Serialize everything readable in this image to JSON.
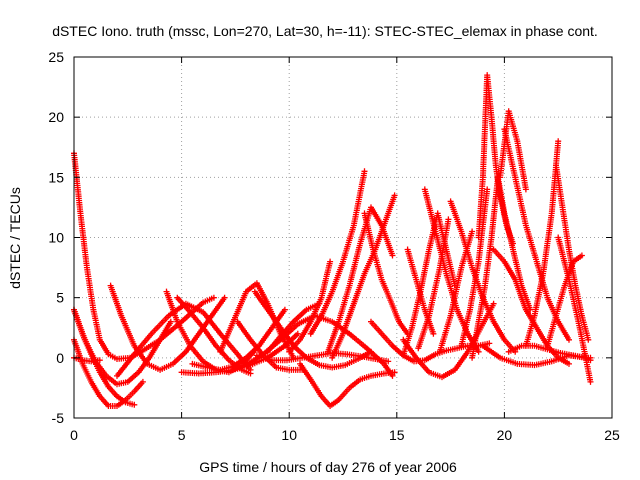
{
  "chart_data": {
    "type": "scatter",
    "title": "dSTEC Iono. truth (mssc, Lon=270, Lat=30, h=-11): STEC-STEC_elemax in phase cont.",
    "xlabel": "GPS time / hours of day 276 of year 2006",
    "ylabel": "dSTEC  / TECUs",
    "xlim": [
      0,
      25
    ],
    "ylim": [
      -5,
      25
    ],
    "x_ticks": [
      "0",
      "5",
      "10",
      "15",
      "20",
      "25"
    ],
    "y_ticks": [
      "-5",
      "0",
      "5",
      "10",
      "15",
      "20",
      "25"
    ],
    "grid": true,
    "legend": "none",
    "marker": "+",
    "color": "#ff0000",
    "series": [
      {
        "x": [
          0.0,
          0.3,
          0.6,
          0.9,
          1.2,
          1.6,
          2.0,
          2.6,
          3.2,
          4.0,
          5.0,
          6.0,
          6.5
        ],
        "y": [
          17.0,
          12.0,
          7.5,
          4.0,
          1.5,
          0.3,
          -0.1,
          0.0,
          0.6,
          1.5,
          3.0,
          4.6,
          5.0
        ]
      },
      {
        "x": [
          0.0,
          0.4,
          0.8,
          1.2,
          1.6,
          2.0,
          2.4,
          2.8
        ],
        "y": [
          4.0,
          2.0,
          0.3,
          -1.2,
          -2.4,
          -3.2,
          -3.7,
          -3.9
        ]
      },
      {
        "x": [
          0.0,
          0.4,
          0.8,
          1.2,
          1.6,
          2.0,
          2.4,
          2.8,
          3.2
        ],
        "y": [
          1.5,
          -0.5,
          -2.0,
          -3.2,
          -4.0,
          -4.0,
          -3.5,
          -2.8,
          -2.0
        ]
      },
      {
        "x": [
          0.0,
          0.5,
          1.0,
          1.5,
          2.0,
          2.5,
          3.0,
          3.5,
          4.0,
          4.5
        ],
        "y": [
          4.0,
          1.5,
          -0.3,
          -1.5,
          -2.2,
          -2.0,
          -1.2,
          0.0,
          1.5,
          3.0
        ]
      },
      {
        "x": [
          0.0,
          0.4,
          0.8,
          1.2
        ],
        "y": [
          0.0,
          -0.2,
          -0.3,
          -0.2
        ]
      },
      {
        "x": [
          1.7,
          2.2,
          2.8,
          3.4,
          4.0,
          4.6,
          5.2,
          5.8,
          6.4,
          7.0
        ],
        "y": [
          6.0,
          3.5,
          1.0,
          -0.5,
          -1.0,
          -0.5,
          0.5,
          2.0,
          3.5,
          5.0
        ]
      },
      {
        "x": [
          4.3,
          4.8,
          5.4,
          6.0,
          6.6,
          7.2,
          7.8,
          8.4
        ],
        "y": [
          5.5,
          3.0,
          1.0,
          -0.3,
          -1.0,
          -1.2,
          -0.6,
          0.6
        ]
      },
      {
        "x": [
          4.8,
          5.4,
          6.0,
          6.6,
          7.2,
          7.8,
          8.2
        ],
        "y": [
          5.0,
          3.8,
          2.5,
          1.0,
          -0.2,
          -1.0,
          -1.3
        ]
      },
      {
        "x": [
          2.0,
          2.8,
          3.6,
          4.4,
          5.2,
          6.0,
          6.8,
          7.6,
          8.2
        ],
        "y": [
          -1.5,
          0.3,
          2.0,
          3.5,
          4.5,
          3.8,
          2.0,
          0.3,
          -1.0
        ]
      },
      {
        "x": [
          5.5,
          6.2,
          6.8,
          7.4,
          8.0,
          8.6,
          9.2,
          9.8
        ],
        "y": [
          -0.5,
          -0.8,
          -1.0,
          -0.7,
          0.0,
          1.0,
          2.5,
          4.0
        ]
      },
      {
        "x": [
          5.0,
          5.8,
          6.6,
          7.4,
          8.2,
          9.0,
          9.8,
          10.4
        ],
        "y": [
          -1.2,
          -1.3,
          -1.2,
          -1.0,
          -0.6,
          0.0,
          1.0,
          2.0
        ]
      },
      {
        "x": [
          6.8,
          7.4,
          8.0,
          8.5,
          9.0,
          9.6,
          10.2
        ],
        "y": [
          0.5,
          3.0,
          5.5,
          6.2,
          4.5,
          2.0,
          0.0
        ]
      },
      {
        "x": [
          7.6,
          8.2,
          8.8,
          9.4,
          10.0,
          10.6
        ],
        "y": [
          3.0,
          1.5,
          0.2,
          -0.8,
          -1.0,
          -1.0
        ]
      },
      {
        "x": [
          8.4,
          9.0,
          9.6,
          10.2,
          10.8,
          11.4,
          12.0,
          12.6,
          13.2,
          13.8
        ],
        "y": [
          5.5,
          4.0,
          2.5,
          1.0,
          0.0,
          -0.6,
          -0.8,
          -0.6,
          -0.1,
          0.5
        ]
      },
      {
        "x": [
          8.5,
          9.2,
          9.9,
          10.6,
          11.3,
          12.0,
          12.7,
          13.4,
          14.0,
          14.6
        ],
        "y": [
          0.2,
          -0.2,
          -0.2,
          0.0,
          0.2,
          0.4,
          0.3,
          0.1,
          -0.1,
          -0.3
        ]
      },
      {
        "x": [
          8.0,
          8.8,
          9.6,
          10.4,
          11.2,
          12.0,
          12.8,
          13.6,
          14.4,
          14.8
        ],
        "y": [
          -0.6,
          0.3,
          1.5,
          2.8,
          3.5,
          3.0,
          2.0,
          0.8,
          -0.5,
          -1.5
        ]
      },
      {
        "x": [
          9.0,
          9.6,
          10.2,
          10.8,
          11.4
        ],
        "y": [
          0.5,
          1.8,
          3.0,
          4.0,
          4.5
        ]
      },
      {
        "x": [
          10.5,
          11.0,
          11.5,
          11.9,
          12.3,
          12.8,
          13.3,
          13.8,
          14.4,
          14.9
        ],
        "y": [
          -0.5,
          -1.8,
          -3.2,
          -4.0,
          -3.5,
          -2.5,
          -1.8,
          -1.5,
          -1.3,
          -1.2
        ]
      },
      {
        "x": [
          10.0,
          10.5,
          11.0,
          11.5,
          11.9
        ],
        "y": [
          0.5,
          1.5,
          3.0,
          5.0,
          8.0
        ]
      },
      {
        "x": [
          11.0,
          11.5,
          12.0,
          12.5,
          13.0,
          13.5
        ],
        "y": [
          2.0,
          3.5,
          5.5,
          8.0,
          11.0,
          15.5
        ]
      },
      {
        "x": [
          12.0,
          12.5,
          13.0,
          13.5,
          14.0,
          14.5,
          14.9
        ],
        "y": [
          0.0,
          2.0,
          4.5,
          7.0,
          9.0,
          11.5,
          13.5
        ]
      },
      {
        "x": [
          11.8,
          12.3,
          12.8,
          13.3,
          13.8,
          14.3,
          14.8
        ],
        "y": [
          0.5,
          3.0,
          6.0,
          9.5,
          12.5,
          11.0,
          8.5
        ]
      },
      {
        "x": [
          13.5,
          13.9,
          14.3,
          14.7,
          15.1,
          15.5
        ],
        "y": [
          12.0,
          9.0,
          6.5,
          4.8,
          3.0,
          2.0
        ]
      },
      {
        "x": [
          13.8,
          14.3,
          14.8,
          15.3,
          15.8,
          16.3,
          16.8,
          17.3,
          17.8,
          18.3,
          18.8,
          19.3
        ],
        "y": [
          3.0,
          2.0,
          1.0,
          0.2,
          -0.3,
          -0.2,
          0.3,
          0.6,
          0.8,
          1.0,
          1.0,
          1.2
        ]
      },
      {
        "x": [
          15.5,
          15.9,
          16.3,
          16.7
        ],
        "y": [
          9.0,
          6.5,
          4.0,
          2.0
        ]
      },
      {
        "x": [
          15.3,
          15.7,
          16.1,
          16.5,
          16.9,
          17.3,
          17.7
        ],
        "y": [
          0.2,
          2.5,
          5.5,
          9.0,
          12.0,
          9.0,
          6.0
        ]
      },
      {
        "x": [
          15.3,
          15.9,
          16.5,
          17.1,
          17.7,
          18.3,
          18.9,
          19.5
        ],
        "y": [
          1.5,
          0.0,
          -1.2,
          -1.6,
          -1.0,
          0.5,
          2.5,
          4.5
        ]
      },
      {
        "x": [
          16.0,
          16.5,
          17.0,
          17.4
        ],
        "y": [
          0.8,
          3.5,
          7.5,
          11.5
        ]
      },
      {
        "x": [
          16.3,
          16.8,
          17.3,
          17.8,
          18.3,
          18.8
        ],
        "y": [
          14.0,
          10.5,
          7.0,
          4.0,
          2.0,
          0.5
        ]
      },
      {
        "x": [
          17.0,
          17.5,
          18.0,
          18.5
        ],
        "y": [
          0.5,
          3.5,
          7.5,
          10.5
        ]
      },
      {
        "x": [
          17.5,
          18.0,
          18.5,
          19.0,
          19.5,
          20.0,
          20.5
        ],
        "y": [
          13.0,
          10.5,
          7.5,
          5.0,
          3.0,
          1.5,
          0.5
        ]
      },
      {
        "x": [
          18.0,
          18.4,
          18.8,
          19.2
        ],
        "y": [
          1.0,
          4.0,
          8.0,
          14.0
        ]
      },
      {
        "x": [
          18.5,
          18.8,
          19.1,
          19.4,
          19.7,
          20.0,
          20.4,
          20.8,
          21.2
        ],
        "y": [
          0.0,
          3.0,
          6.0,
          10.0,
          15.0,
          12.0,
          9.0,
          6.0,
          4.0
        ]
      },
      {
        "x": [
          18.8,
          19.0,
          19.2,
          19.4,
          19.6,
          19.8,
          20.1,
          20.4
        ],
        "y": [
          10.0,
          15.0,
          23.5,
          20.0,
          16.0,
          13.5,
          11.0,
          9.5
        ]
      },
      {
        "x": [
          19.5,
          20.0,
          20.5,
          21.0,
          21.5,
          22.0,
          22.5,
          23.0
        ],
        "y": [
          9.0,
          8.0,
          6.5,
          4.0,
          2.5,
          1.0,
          0.0,
          -0.5
        ]
      },
      {
        "x": [
          19.8,
          20.2,
          20.6,
          21.0
        ],
        "y": [
          15.0,
          20.5,
          18.0,
          14.0
        ]
      },
      {
        "x": [
          20.0,
          20.5,
          21.0,
          21.5,
          22.0,
          22.5,
          23.0
        ],
        "y": [
          19.0,
          15.0,
          11.0,
          8.0,
          5.0,
          3.0,
          1.5
        ]
      },
      {
        "x": [
          19.0,
          19.8,
          20.6,
          21.4,
          22.2,
          23.0,
          23.8,
          24.0
        ],
        "y": [
          1.0,
          0.0,
          -0.5,
          -0.6,
          -0.3,
          0.2,
          0.0,
          -0.2
        ]
      },
      {
        "x": [
          20.2,
          20.8,
          21.4,
          22.0,
          22.6,
          23.2,
          23.8,
          24.0
        ],
        "y": [
          0.5,
          1.0,
          1.0,
          0.7,
          0.4,
          0.2,
          0.0,
          0.0
        ]
      },
      {
        "x": [
          21.0,
          21.4,
          21.8,
          22.2,
          22.5
        ],
        "y": [
          1.0,
          3.5,
          7.0,
          12.0,
          18.0
        ]
      },
      {
        "x": [
          22.4,
          22.7,
          23.0,
          23.3,
          23.6,
          23.9
        ],
        "y": [
          16.0,
          12.5,
          9.0,
          6.0,
          3.5,
          1.5
        ]
      },
      {
        "x": [
          22.0,
          22.4,
          22.8,
          23.2,
          23.6
        ],
        "y": [
          1.0,
          3.5,
          6.0,
          8.0,
          8.5
        ]
      },
      {
        "x": [
          22.5,
          23.0,
          23.5,
          24.0
        ],
        "y": [
          10.0,
          6.5,
          2.5,
          -2.0
        ]
      }
    ]
  }
}
